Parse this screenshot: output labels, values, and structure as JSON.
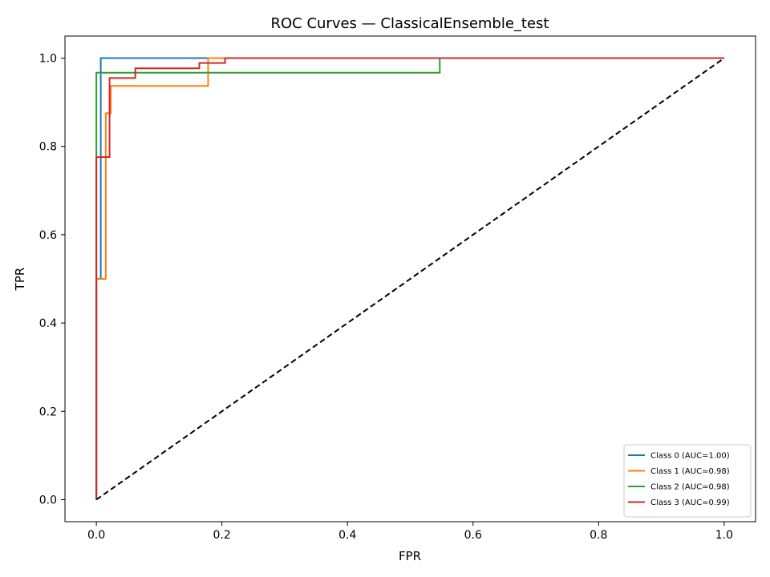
{
  "chart_data": {
    "type": "line",
    "title": "ROC Curves — ClassicalEnsemble_test",
    "xlabel": "FPR",
    "ylabel": "TPR",
    "xlim": [
      -0.05,
      1.05
    ],
    "ylim": [
      -0.05,
      1.05
    ],
    "xticks": [
      0.0,
      0.2,
      0.4,
      0.6,
      0.8,
      1.0
    ],
    "yticks": [
      0.0,
      0.2,
      0.4,
      0.6,
      0.8,
      1.0
    ],
    "xtick_labels": [
      "0.0",
      "0.2",
      "0.4",
      "0.6",
      "0.8",
      "1.0"
    ],
    "ytick_labels": [
      "0.0",
      "0.2",
      "0.4",
      "0.6",
      "0.8",
      "1.0"
    ],
    "grid": false,
    "legend_position": "lower-right",
    "series": [
      {
        "name": "Class 0 (AUC=1.00)",
        "color": "#1f77b4",
        "x": [
          0.0,
          0.0,
          0.007,
          0.007,
          1.0
        ],
        "y": [
          0.0,
          0.5,
          0.5,
          1.0,
          1.0
        ]
      },
      {
        "name": "Class 1 (AUC=0.98)",
        "color": "#ff7f0e",
        "x": [
          0.0,
          0.0,
          0.015,
          0.015,
          0.023,
          0.023,
          0.178,
          0.178,
          1.0
        ],
        "y": [
          0.0,
          0.5,
          0.5,
          0.875,
          0.875,
          0.937,
          0.937,
          1.0,
          1.0
        ]
      },
      {
        "name": "Class 2 (AUC=0.98)",
        "color": "#2ca02c",
        "x": [
          0.0,
          0.0,
          0.547,
          0.547,
          1.0
        ],
        "y": [
          0.0,
          0.967,
          0.967,
          1.0,
          1.0
        ]
      },
      {
        "name": "Class 3 (AUC=0.99)",
        "color": "#d62728",
        "x": [
          0.0,
          0.0,
          0.021,
          0.021,
          0.062,
          0.062,
          0.164,
          0.164,
          0.205,
          0.205,
          1.0
        ],
        "y": [
          0.0,
          0.776,
          0.776,
          0.955,
          0.955,
          0.977,
          0.977,
          0.989,
          0.989,
          1.0,
          1.0
        ]
      }
    ],
    "reference_line": {
      "color": "#000000",
      "style": "dashed",
      "x": [
        0.0,
        1.0
      ],
      "y": [
        0.0,
        1.0
      ]
    }
  }
}
